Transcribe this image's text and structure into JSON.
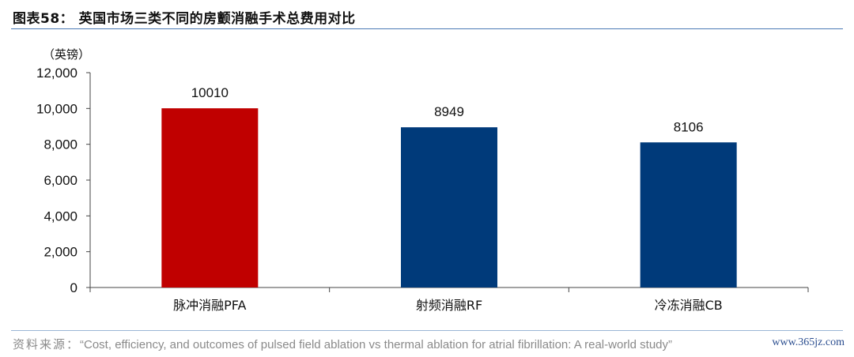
{
  "header": {
    "title": "图表58： 英国市场三类不同的房颤消融手术总费用对比"
  },
  "chart_data": {
    "type": "bar",
    "unit_label": "（英镑）",
    "categories": [
      "脉冲消融PFA",
      "射频消融RF",
      "冷冻消融CB"
    ],
    "values": [
      10010,
      8949,
      8106
    ],
    "data_labels": [
      "10010",
      "8949",
      "8106"
    ],
    "bar_colors": [
      "#c00000",
      "#003a7a",
      "#003a7a"
    ],
    "ylim": [
      0,
      12000
    ],
    "yticks": [
      0,
      2000,
      4000,
      6000,
      8000,
      10000,
      12000
    ],
    "ytick_labels": [
      "0",
      "2,000",
      "4,000",
      "6,000",
      "8,000",
      "10,000",
      "12,000"
    ],
    "grid": false,
    "legend": "none"
  },
  "footer": {
    "source_label": "资料来源：",
    "source_text": "“Cost, efficiency, and outcomes of pulsed field ablation vs thermal ablation for atrial fibrillation: A real-world study”",
    "watermark": "www.365jz.com"
  }
}
